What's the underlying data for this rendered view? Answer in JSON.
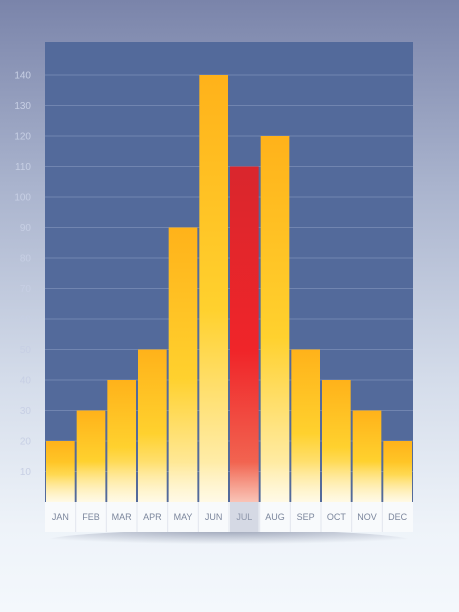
{
  "chart_data": {
    "type": "bar",
    "title": "",
    "xlabel": "",
    "ylabel": "",
    "categories": [
      "JAN",
      "FEB",
      "MAR",
      "APR",
      "MAY",
      "JUN",
      "JUL",
      "AUG",
      "SEP",
      "OCT",
      "NOV",
      "DEC"
    ],
    "values": [
      20,
      30,
      40,
      50,
      90,
      140,
      110,
      120,
      50,
      40,
      30,
      20
    ],
    "ylim": [
      0,
      150
    ],
    "yticks": [
      10,
      20,
      30,
      40,
      50,
      60,
      70,
      80,
      90,
      100,
      110,
      120,
      130,
      140
    ],
    "highlight_category": "JUL",
    "grid": true,
    "legend": "none"
  },
  "colors": {
    "plot_background": "#536a9b",
    "grid_line": "#7185b0",
    "bar_top": "#ffb21a",
    "bar_mid": "#ffd12e",
    "bar_bottom": "#fff3c7",
    "highlight_top": "#d9262d",
    "highlight_mid": "#f02529",
    "highlight_bottom": "#f27a5e",
    "label_strip": "#f8fafc",
    "highlight_label_bg": "#d5d9e4"
  }
}
